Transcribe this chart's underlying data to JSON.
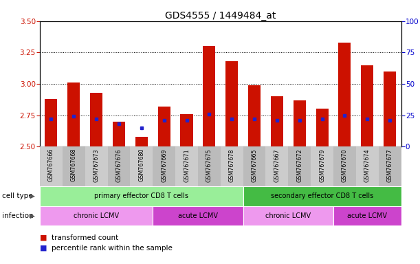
{
  "title": "GDS4555 / 1449484_at",
  "samples": [
    "GSM767666",
    "GSM767668",
    "GSM767673",
    "GSM767676",
    "GSM767680",
    "GSM767669",
    "GSM767671",
    "GSM767675",
    "GSM767678",
    "GSM767665",
    "GSM767667",
    "GSM767672",
    "GSM767679",
    "GSM767670",
    "GSM767674",
    "GSM767677"
  ],
  "transformed_count": [
    2.88,
    3.01,
    2.93,
    2.7,
    2.58,
    2.82,
    2.76,
    3.3,
    3.18,
    2.99,
    2.9,
    2.87,
    2.8,
    3.33,
    3.15,
    3.1
  ],
  "percentile_rank": [
    22,
    24,
    22,
    18,
    15,
    21,
    21,
    26,
    22,
    22,
    21,
    21,
    22,
    25,
    22,
    21
  ],
  "ylim_left": [
    2.5,
    3.5
  ],
  "ylim_right": [
    0,
    100
  ],
  "yticks_left": [
    2.5,
    2.75,
    3.0,
    3.25,
    3.5
  ],
  "yticks_right": [
    0,
    25,
    50,
    75,
    100
  ],
  "bar_color": "#cc1100",
  "dot_color": "#2222cc",
  "bg_color": "#ffffff",
  "plot_bg": "#ffffff",
  "xtick_bg": "#cccccc",
  "cell_type_groups": [
    {
      "label": "primary effector CD8 T cells",
      "start": 0,
      "end": 8,
      "color": "#99ee99"
    },
    {
      "label": "secondary effector CD8 T cells",
      "start": 9,
      "end": 15,
      "color": "#44bb44"
    }
  ],
  "infection_groups": [
    {
      "label": "chronic LCMV",
      "start": 0,
      "end": 4,
      "color": "#ee99ee"
    },
    {
      "label": "acute LCMV",
      "start": 5,
      "end": 8,
      "color": "#cc44cc"
    },
    {
      "label": "chronic LCMV",
      "start": 9,
      "end": 12,
      "color": "#ee99ee"
    },
    {
      "label": "acute LCMV",
      "start": 13,
      "end": 15,
      "color": "#cc44cc"
    }
  ],
  "label_color_left": "#cc1100",
  "label_color_right": "#0000cc",
  "gridlines_at": [
    2.75,
    3.0,
    3.25
  ]
}
